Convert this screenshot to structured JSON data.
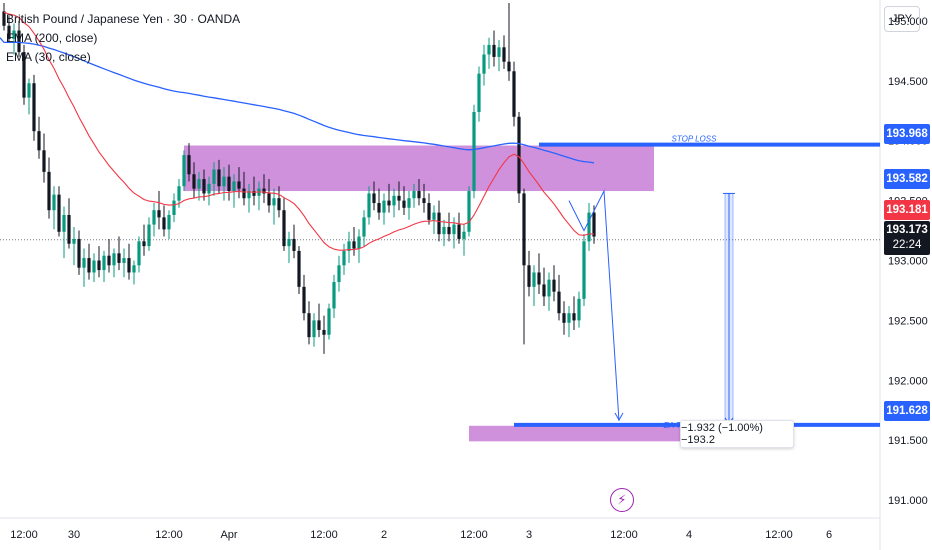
{
  "legend": {
    "symbol": "British Pound / Japanese Yen · 30 · OANDA",
    "ema200": "EMA (200, close)",
    "ema30": "EMA (30, close)"
  },
  "currency": "JPY",
  "colors": {
    "up": "#089981",
    "down": "#131722",
    "ema200": "#2962ff",
    "ema30": "#f23645",
    "zone": "#c77ed6",
    "level": "#2962ff",
    "price_tag": "#f23645",
    "last_tag": "#131722"
  },
  "tags": {
    "stop": "193.968",
    "zone_bottom": "193.582",
    "zone_bottom_under": "193.500",
    "price": "193.181",
    "last": "193.173",
    "countdown": "22:24",
    "target": "191.628",
    "target_under": "191.500"
  },
  "labels": {
    "stop_loss": "STOP LOSS",
    "target": "EA TARGET POINT",
    "measure": "−1.932 (−1.00%) −193.2"
  },
  "chart_data": {
    "type": "candlestick",
    "y_axis": {
      "ticks": [
        195.0,
        194.5,
        194.0,
        193.5,
        193.0,
        192.5,
        192.0,
        191.5,
        191.0
      ],
      "tick_labels": [
        "195.000",
        "194.500",
        "194.000",
        "193.500",
        "193.000",
        "192.500",
        "192.000",
        "191.500",
        "191.000"
      ],
      "ylim": [
        190.85,
        195.15
      ]
    },
    "x_axis": {
      "tick_labels": [
        "12:00",
        "30",
        "12:00",
        "Apr",
        "12:00",
        "2",
        "12:00",
        "3",
        "12:00",
        "4",
        "12:00",
        "6"
      ],
      "bar_index_ticks": [
        0,
        10,
        29,
        41,
        60,
        72,
        90,
        101,
        120,
        133,
        151,
        161
      ]
    },
    "levels": [
      {
        "name": "STOP LOSS",
        "value": 193.968
      },
      {
        "name": "EA TARGET POINT",
        "value": 191.628
      }
    ],
    "zones": [
      {
        "top": 193.96,
        "bottom": 193.58,
        "bar_from": 36,
        "bar_to": 130
      },
      {
        "top": 191.62,
        "bottom": 191.49,
        "bar_from": 93,
        "bar_to": 142
      }
    ],
    "measure": {
      "from": 193.56,
      "to": 191.628,
      "change": -1.932,
      "percent": -1.0,
      "ticks": -193.2
    },
    "projection": [
      {
        "bar": 113,
        "price": 193.5
      },
      {
        "bar": 116,
        "price": 193.25
      },
      {
        "bar": 120,
        "price": 193.58
      },
      {
        "bar": 123,
        "price": 191.66
      }
    ],
    "last_price": 193.173,
    "ohlc_30m": [
      [
        195.08,
        195.15,
        194.92,
        194.96
      ],
      [
        194.96,
        195.04,
        194.82,
        194.85
      ],
      [
        194.85,
        194.98,
        194.72,
        194.92
      ],
      [
        194.92,
        195.0,
        194.7,
        194.74
      ],
      [
        194.74,
        194.8,
        194.3,
        194.36
      ],
      [
        194.36,
        194.52,
        194.22,
        194.48
      ],
      [
        194.48,
        194.55,
        194.0,
        194.08
      ],
      [
        194.08,
        194.2,
        193.85,
        193.92
      ],
      [
        193.92,
        194.06,
        193.65,
        193.74
      ],
      [
        193.74,
        193.86,
        193.35,
        193.42
      ],
      [
        193.42,
        193.62,
        193.26,
        193.55
      ],
      [
        193.55,
        193.62,
        193.2,
        193.24
      ],
      [
        193.24,
        193.45,
        193.02,
        193.38
      ],
      [
        193.38,
        193.52,
        193.1,
        193.14
      ],
      [
        193.14,
        193.28,
        192.96,
        193.18
      ],
      [
        193.18,
        193.25,
        192.88,
        192.94
      ],
      [
        192.94,
        193.1,
        192.78,
        193.02
      ],
      [
        193.02,
        193.14,
        192.84,
        192.9
      ],
      [
        192.9,
        193.06,
        192.82,
        193.0
      ],
      [
        193.0,
        193.12,
        192.86,
        192.92
      ],
      [
        192.92,
        193.08,
        192.82,
        193.04
      ],
      [
        193.04,
        193.18,
        192.9,
        192.96
      ],
      [
        192.96,
        193.1,
        192.86,
        193.06
      ],
      [
        193.06,
        193.2,
        192.92,
        192.98
      ],
      [
        192.98,
        193.1,
        192.86,
        193.02
      ],
      [
        193.02,
        193.14,
        192.84,
        192.9
      ],
      [
        192.9,
        193.0,
        192.8,
        192.96
      ],
      [
        192.96,
        193.2,
        192.9,
        193.16
      ],
      [
        193.16,
        193.3,
        193.04,
        193.12
      ],
      [
        193.12,
        193.36,
        193.08,
        193.3
      ],
      [
        193.3,
        193.48,
        193.2,
        193.42
      ],
      [
        193.42,
        193.58,
        193.26,
        193.36
      ],
      [
        193.36,
        193.46,
        193.2,
        193.26
      ],
      [
        193.26,
        193.42,
        193.18,
        193.38
      ],
      [
        193.38,
        193.56,
        193.32,
        193.5
      ],
      [
        193.5,
        193.68,
        193.44,
        193.62
      ],
      [
        193.62,
        193.92,
        193.58,
        193.88
      ],
      [
        193.88,
        193.98,
        193.66,
        193.72
      ],
      [
        193.72,
        193.82,
        193.52,
        193.6
      ],
      [
        193.6,
        193.74,
        193.5,
        193.68
      ],
      [
        193.68,
        193.76,
        193.5,
        193.56
      ],
      [
        193.56,
        193.7,
        193.46,
        193.64
      ],
      [
        193.64,
        193.82,
        193.54,
        193.76
      ],
      [
        193.76,
        193.84,
        193.56,
        193.62
      ],
      [
        193.62,
        193.78,
        193.5,
        193.7
      ],
      [
        193.7,
        193.8,
        193.5,
        193.58
      ],
      [
        193.58,
        193.72,
        193.44,
        193.66
      ],
      [
        193.66,
        193.78,
        193.52,
        193.6
      ],
      [
        193.6,
        193.74,
        193.46,
        193.52
      ],
      [
        193.52,
        193.64,
        193.4,
        193.58
      ],
      [
        193.58,
        193.7,
        193.46,
        193.54
      ],
      [
        193.54,
        193.66,
        193.42,
        193.6
      ],
      [
        193.6,
        193.72,
        193.48,
        193.56
      ],
      [
        193.56,
        193.68,
        193.4,
        193.46
      ],
      [
        193.46,
        193.6,
        193.3,
        193.52
      ],
      [
        193.52,
        193.62,
        193.36,
        193.42
      ],
      [
        193.42,
        193.52,
        193.08,
        193.12
      ],
      [
        193.12,
        193.24,
        192.98,
        193.18
      ],
      [
        193.18,
        193.3,
        193.02,
        193.08
      ],
      [
        193.08,
        193.12,
        192.72,
        192.78
      ],
      [
        192.78,
        192.88,
        192.5,
        192.56
      ],
      [
        192.56,
        192.66,
        192.3,
        192.36
      ],
      [
        192.36,
        192.56,
        192.28,
        192.5
      ],
      [
        192.5,
        192.64,
        192.36,
        192.42
      ],
      [
        192.42,
        192.54,
        192.22,
        192.38
      ],
      [
        192.38,
        192.64,
        192.34,
        192.6
      ],
      [
        192.6,
        192.88,
        192.52,
        192.82
      ],
      [
        192.82,
        193.04,
        192.74,
        192.96
      ],
      [
        192.96,
        193.14,
        192.88,
        193.08
      ],
      [
        193.08,
        193.24,
        192.98,
        193.16
      ],
      [
        193.16,
        193.28,
        193.04,
        193.1
      ],
      [
        193.1,
        193.26,
        192.98,
        193.2
      ],
      [
        193.2,
        193.42,
        193.12,
        193.36
      ],
      [
        193.36,
        193.62,
        193.3,
        193.56
      ],
      [
        193.56,
        193.66,
        193.42,
        193.48
      ],
      [
        193.48,
        193.6,
        193.34,
        193.4
      ],
      [
        193.4,
        193.56,
        193.3,
        193.5
      ],
      [
        193.5,
        193.64,
        193.4,
        193.46
      ],
      [
        193.46,
        193.6,
        193.36,
        193.54
      ],
      [
        193.54,
        193.66,
        193.42,
        193.5
      ],
      [
        193.5,
        193.62,
        193.38,
        193.44
      ],
      [
        193.44,
        193.58,
        193.34,
        193.52
      ],
      [
        193.52,
        193.64,
        193.44,
        193.58
      ],
      [
        193.58,
        193.68,
        193.46,
        193.52
      ],
      [
        193.52,
        193.64,
        193.4,
        193.48
      ],
      [
        193.48,
        193.56,
        193.3,
        193.34
      ],
      [
        193.34,
        193.46,
        193.22,
        193.4
      ],
      [
        193.4,
        193.5,
        193.16,
        193.22
      ],
      [
        193.22,
        193.34,
        193.12,
        193.28
      ],
      [
        193.28,
        193.4,
        193.16,
        193.22
      ],
      [
        193.22,
        193.36,
        193.1,
        193.3
      ],
      [
        193.3,
        193.4,
        193.14,
        193.18
      ],
      [
        193.18,
        193.3,
        193.04,
        193.24
      ],
      [
        193.24,
        193.62,
        193.2,
        193.58
      ],
      [
        193.58,
        194.3,
        193.52,
        194.24
      ],
      [
        194.24,
        194.62,
        194.16,
        194.56
      ],
      [
        194.56,
        194.8,
        194.46,
        194.72
      ],
      [
        194.72,
        194.86,
        194.6,
        194.8
      ],
      [
        194.8,
        194.92,
        194.62,
        194.7
      ],
      [
        194.7,
        194.84,
        194.58,
        194.78
      ],
      [
        194.78,
        194.88,
        194.6,
        194.66
      ],
      [
        194.66,
        195.15,
        194.5,
        194.58
      ],
      [
        194.58,
        194.66,
        194.12,
        194.2
      ],
      [
        194.2,
        194.24,
        193.48,
        193.56
      ],
      [
        193.56,
        193.6,
        192.3,
        192.96
      ],
      [
        192.96,
        193.08,
        192.7,
        192.78
      ],
      [
        192.78,
        192.96,
        192.62,
        192.9
      ],
      [
        192.9,
        193.06,
        192.72,
        192.8
      ],
      [
        192.8,
        192.94,
        192.62,
        192.7
      ],
      [
        192.7,
        192.9,
        192.58,
        192.84
      ],
      [
        192.84,
        192.96,
        192.66,
        192.74
      ],
      [
        192.74,
        192.88,
        192.5,
        192.56
      ],
      [
        192.56,
        192.66,
        192.38,
        192.48
      ],
      [
        192.48,
        192.62,
        192.36,
        192.56
      ],
      [
        192.56,
        192.7,
        192.42,
        192.5
      ],
      [
        192.5,
        192.74,
        192.44,
        192.68
      ],
      [
        192.68,
        193.22,
        192.62,
        193.16
      ],
      [
        193.16,
        193.48,
        193.08,
        193.4
      ],
      [
        193.4,
        193.46,
        193.14,
        193.2
      ]
    ]
  }
}
